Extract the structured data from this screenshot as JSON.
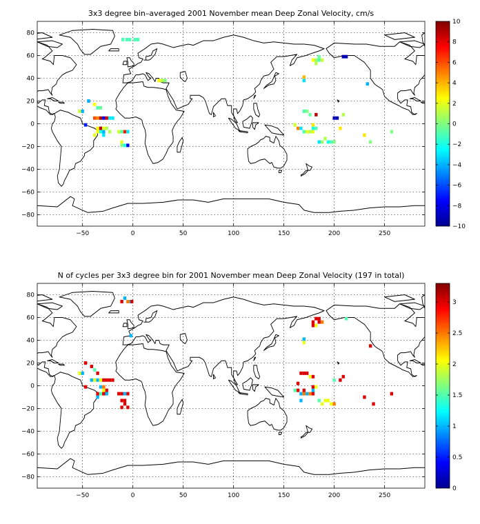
{
  "chart_data": [
    {
      "type": "heatmap",
      "title": "3x3 degree bin–averaged 2001 November mean Deep Zonal Velocity, cm/s",
      "xlim": [
        -95,
        290
      ],
      "ylim": [
        -90,
        90
      ],
      "xticks": [
        -50,
        0,
        50,
        100,
        150,
        200,
        250
      ],
      "yticks": [
        -80,
        -60,
        -40,
        -20,
        0,
        20,
        40,
        60,
        80
      ],
      "grid": true,
      "colorbar": {
        "min": -10,
        "max": 10,
        "ticks": [
          -10,
          -8,
          -6,
          -4,
          -2,
          0,
          2,
          4,
          6,
          8,
          10
        ],
        "colormap": "jet",
        "placement": "right"
      },
      "cells": [
        [
          -10,
          74,
          -1
        ],
        [
          -6,
          74,
          -1
        ],
        [
          -3,
          74,
          -1
        ],
        [
          2,
          74,
          -1
        ],
        [
          5,
          74,
          -1
        ],
        [
          -53,
          11,
          1.5
        ],
        [
          -50,
          11,
          -4
        ],
        [
          -44,
          20,
          -4
        ],
        [
          -38,
          17,
          2.5
        ],
        [
          -35,
          14,
          -1
        ],
        [
          -32,
          14,
          -0.5
        ],
        [
          -38,
          5,
          6
        ],
        [
          -35,
          5,
          5
        ],
        [
          -32,
          5,
          9
        ],
        [
          -29,
          5,
          -8
        ],
        [
          -26,
          5,
          8
        ],
        [
          -23,
          5,
          -3
        ],
        [
          -20,
          5,
          -3
        ],
        [
          -47,
          -1,
          -7
        ],
        [
          -35,
          -4,
          2.5
        ],
        [
          -32,
          -4,
          9
        ],
        [
          -29,
          -4,
          2
        ],
        [
          -26,
          -4,
          1
        ],
        [
          -23,
          -7,
          1
        ],
        [
          -35,
          -7,
          2.5
        ],
        [
          -32,
          -7,
          -2
        ],
        [
          -29,
          -7,
          -4
        ],
        [
          -38,
          -10,
          2
        ],
        [
          -29,
          -10,
          -3
        ],
        [
          -14,
          -7,
          1.5
        ],
        [
          -11,
          -7,
          -1
        ],
        [
          -8,
          -7,
          7
        ],
        [
          -5,
          -7,
          -3
        ],
        [
          -11,
          -16,
          2
        ],
        [
          -11,
          -19,
          0
        ],
        [
          -8,
          -19,
          -2
        ],
        [
          -5,
          -19,
          -8
        ],
        [
          26,
          38,
          2.5
        ],
        [
          29,
          38,
          1
        ],
        [
          32,
          38,
          0
        ],
        [
          179,
          56,
          2.5
        ],
        [
          182,
          53,
          1
        ],
        [
          182,
          56,
          0.5
        ],
        [
          185,
          56,
          -1
        ],
        [
          188,
          56,
          1.5
        ],
        [
          185,
          59,
          -0.5
        ],
        [
          209,
          59,
          -9
        ],
        [
          212,
          59,
          -9
        ],
        [
          233,
          35,
          -4
        ],
        [
          170,
          41,
          4
        ],
        [
          170,
          38,
          -3
        ],
        [
          170,
          11,
          -1
        ],
        [
          173,
          11,
          0
        ],
        [
          182,
          8,
          9
        ],
        [
          176,
          8,
          -0.5
        ],
        [
          167,
          -4,
          -3
        ],
        [
          170,
          -7,
          -1
        ],
        [
          173,
          -7,
          2
        ],
        [
          176,
          -7,
          1
        ],
        [
          179,
          -7,
          2
        ],
        [
          179,
          -1,
          3
        ],
        [
          182,
          -4,
          -1
        ],
        [
          179,
          -4,
          -2
        ],
        [
          164,
          -4,
          5
        ],
        [
          161,
          -1,
          1.5
        ],
        [
          200,
          5,
          -9
        ],
        [
          203,
          5,
          -9
        ],
        [
          206,
          -4,
          3
        ],
        [
          209,
          8,
          1
        ],
        [
          191,
          -13,
          1
        ],
        [
          194,
          -16,
          -2
        ],
        [
          197,
          -16,
          -1
        ],
        [
          200,
          -16,
          0
        ],
        [
          185,
          -16,
          -3
        ],
        [
          188,
          -16,
          0.5
        ],
        [
          230,
          -10,
          3
        ],
        [
          236,
          -16,
          0
        ],
        [
          257,
          -7,
          0
        ]
      ]
    },
    {
      "type": "heatmap",
      "title": "N of cycles per 3x3 degree bin for 2001 November mean Deep Zonal Velocity (197 in total)",
      "xlim": [
        -95,
        290
      ],
      "ylim": [
        -90,
        90
      ],
      "xticks": [
        -50,
        0,
        50,
        100,
        150,
        200,
        250
      ],
      "yticks": [
        -80,
        -60,
        -40,
        -20,
        0,
        20,
        40,
        60,
        80
      ],
      "grid": true,
      "colorbar": {
        "min": 0,
        "max": 3.3,
        "ticks": [
          0,
          0.5,
          1,
          1.5,
          2,
          2.5,
          3
        ],
        "colormap": "jet",
        "placement": "right"
      },
      "cells": [
        [
          -11,
          74,
          3
        ],
        [
          -8,
          77,
          1
        ],
        [
          -5,
          74,
          2.5
        ],
        [
          -2,
          74,
          1
        ],
        [
          -1,
          74,
          3
        ],
        [
          -53,
          11,
          2
        ],
        [
          -50,
          11,
          1
        ],
        [
          -47,
          20,
          3
        ],
        [
          -41,
          17,
          3
        ],
        [
          -38,
          14,
          1.5
        ],
        [
          -35,
          11,
          3
        ],
        [
          -41,
          5,
          1
        ],
        [
          -38,
          5,
          2
        ],
        [
          -35,
          5,
          1
        ],
        [
          -32,
          5,
          2
        ],
        [
          -29,
          5,
          3
        ],
        [
          -26,
          5,
          3
        ],
        [
          -23,
          5,
          3
        ],
        [
          -20,
          5,
          3
        ],
        [
          -32,
          -1,
          1
        ],
        [
          -29,
          -1,
          2.5
        ],
        [
          -26,
          -4,
          3
        ],
        [
          -29,
          -4,
          2
        ],
        [
          -35,
          -10,
          1
        ],
        [
          -35,
          -7,
          3
        ],
        [
          -32,
          -7,
          1.5
        ],
        [
          -29,
          -7,
          3
        ],
        [
          -26,
          -7,
          1
        ],
        [
          -47,
          -1,
          3
        ],
        [
          -14,
          -7,
          3
        ],
        [
          -11,
          -7,
          3
        ],
        [
          -8,
          -7,
          1
        ],
        [
          -5,
          -7,
          3
        ],
        [
          -11,
          -13,
          3
        ],
        [
          -8,
          -13,
          3
        ],
        [
          -11,
          -19,
          3
        ],
        [
          -8,
          -16,
          3
        ],
        [
          -5,
          -19,
          3
        ],
        [
          -2,
          44,
          1
        ],
        [
          179,
          56,
          3
        ],
        [
          179,
          53,
          3
        ],
        [
          182,
          59,
          3
        ],
        [
          185,
          56,
          3
        ],
        [
          182,
          53,
          2
        ],
        [
          185,
          59,
          3
        ],
        [
          188,
          56,
          2.5
        ],
        [
          212,
          59,
          1.5
        ],
        [
          236,
          35,
          3
        ],
        [
          170,
          41,
          1
        ],
        [
          170,
          38,
          2
        ],
        [
          167,
          11,
          3
        ],
        [
          170,
          11,
          3
        ],
        [
          173,
          11,
          3
        ],
        [
          176,
          8,
          2
        ],
        [
          179,
          8,
          3
        ],
        [
          164,
          -4,
          3
        ],
        [
          161,
          -4,
          1.5
        ],
        [
          170,
          -4,
          3
        ],
        [
          167,
          -7,
          1
        ],
        [
          170,
          -7,
          2.5
        ],
        [
          173,
          -7,
          1
        ],
        [
          176,
          -7,
          2.5
        ],
        [
          179,
          -4,
          1
        ],
        [
          179,
          -1,
          3
        ],
        [
          182,
          -1,
          2
        ],
        [
          179,
          -7,
          3
        ],
        [
          164,
          2,
          3
        ],
        [
          167,
          -13,
          1
        ],
        [
          200,
          5,
          1.5
        ],
        [
          206,
          5,
          3
        ],
        [
          209,
          8,
          3
        ],
        [
          191,
          -13,
          2
        ],
        [
          194,
          -13,
          2
        ],
        [
          197,
          -16,
          2
        ],
        [
          200,
          -16,
          2.5
        ],
        [
          185,
          -13,
          1.5
        ],
        [
          188,
          -16,
          2
        ],
        [
          230,
          -10,
          3
        ],
        [
          239,
          -16,
          3
        ],
        [
          257,
          -7,
          3
        ]
      ]
    }
  ]
}
